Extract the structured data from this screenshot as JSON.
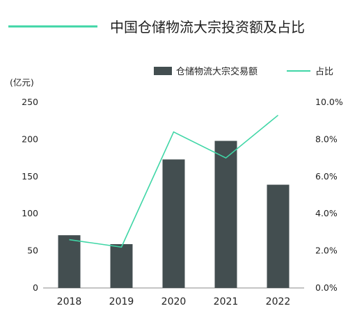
{
  "chart_data": {
    "type": "bar",
    "title": "中国仓储物流大宗投资额及占比",
    "unit_label": "(亿元)",
    "categories": [
      "2018",
      "2019",
      "2020",
      "2021",
      "2022"
    ],
    "series": [
      {
        "name": "仓储物流大宗交易额",
        "type": "bar",
        "axis": "left",
        "values": [
          71,
          59,
          173,
          198,
          139
        ],
        "color": "#434e50"
      },
      {
        "name": "占比",
        "type": "line",
        "axis": "right",
        "values": [
          2.6,
          2.2,
          8.4,
          7.0,
          9.3
        ],
        "color": "#3fd6a6"
      }
    ],
    "y_left": {
      "ylim": [
        0,
        250
      ],
      "ticks": [
        "0",
        "50",
        "100",
        "150",
        "200",
        "250"
      ]
    },
    "y_right": {
      "ylim": [
        0,
        10
      ],
      "ticks": [
        "0.0%",
        "2.0%",
        "4.0%",
        "6.0%",
        "8.0%",
        "10.0%"
      ]
    },
    "grid": false,
    "legend_position": "top-right"
  },
  "colors": {
    "bar": "#434e50",
    "line": "#3fd6a6",
    "axis": "#888888"
  }
}
